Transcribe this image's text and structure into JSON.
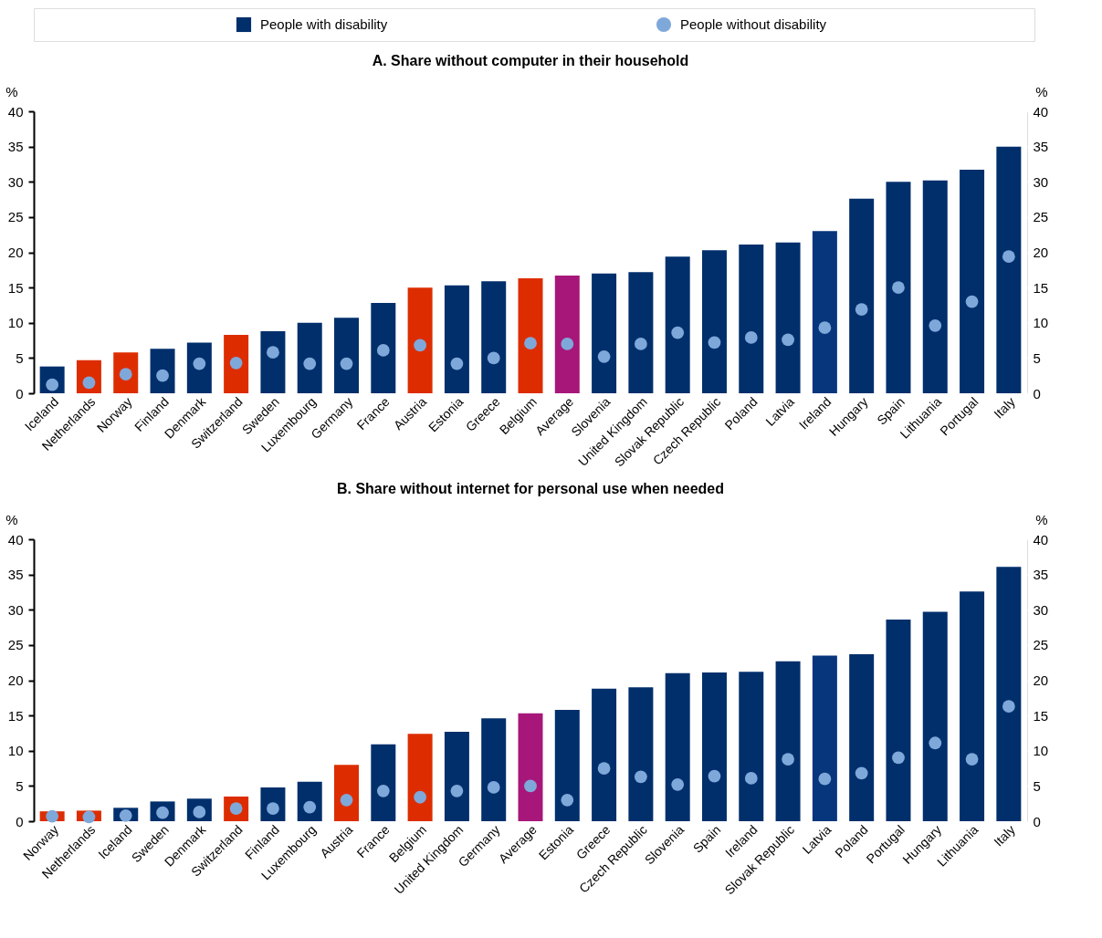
{
  "chart_data": [
    {
      "type": "bar",
      "title": "A. Share without computer in their household",
      "ylabel": "%",
      "y2label": "%",
      "categories": [
        "Iceland",
        "Netherlands",
        "Norway",
        "Finland",
        "Denmark",
        "Switzerland",
        "Sweden",
        "Luxembourg",
        "Germany",
        "France",
        "Austria",
        "Estonia",
        "Greece",
        "Belgium",
        "Average",
        "Slovenia",
        "United Kingdom",
        "Slovak Republic",
        "Czech Republic",
        "Poland",
        "Latvia",
        "Ireland",
        "Hungary",
        "Spain",
        "Lithuania",
        "Portugal",
        "Italy"
      ],
      "series": [
        {
          "name": "People with disability",
          "type": "bar",
          "color": "#002f6c",
          "colors": [
            "#002f6c",
            "#dd2d00",
            "#dd2d00",
            "#002f6c",
            "#002f6c",
            "#dd2d00",
            "#002f6c",
            "#002f6c",
            "#002f6c",
            "#002f6c",
            "#dd2d00",
            "#002f6c",
            "#002f6c",
            "#dd2d00",
            "#a7177a",
            "#002f6c",
            "#002f6c",
            "#002f6c",
            "#002f6c",
            "#002f6c",
            "#002f6c",
            "#07367c",
            "#002f6c",
            "#002f6c",
            "#002f6c",
            "#002f6c",
            "#002f6c"
          ],
          "values": [
            3.8,
            4.7,
            5.8,
            6.3,
            7.2,
            8.3,
            8.8,
            10.0,
            10.7,
            12.8,
            15.0,
            15.3,
            15.9,
            16.3,
            16.7,
            17.0,
            17.2,
            19.4,
            20.3,
            21.1,
            21.4,
            23.0,
            27.6,
            30.0,
            30.2,
            31.7,
            35.0
          ]
        },
        {
          "name": "People without disability",
          "type": "scatter",
          "marker": "circle",
          "color": "#7fa8da",
          "values": [
            1.2,
            1.5,
            2.7,
            2.5,
            4.2,
            4.3,
            5.8,
            4.2,
            4.2,
            6.1,
            6.8,
            4.2,
            5.0,
            7.1,
            7.0,
            5.2,
            7.0,
            8.6,
            7.2,
            7.9,
            7.6,
            9.3,
            11.9,
            15.0,
            9.6,
            13.0,
            19.4
          ]
        }
      ],
      "ylim": [
        0,
        40
      ],
      "yticks": [
        0,
        5,
        10,
        15,
        20,
        25,
        30,
        35,
        40
      ],
      "y2lim": [
        0,
        40
      ],
      "y2ticks": [
        0,
        5,
        10,
        15,
        20,
        25,
        30,
        35,
        40
      ],
      "grid": true,
      "legend": "top"
    },
    {
      "type": "bar",
      "title": "B. Share without internet for personal use when needed",
      "ylabel": "%",
      "y2label": "%",
      "categories": [
        "Norway",
        "Netherlands",
        "Iceland",
        "Sweden",
        "Denmark",
        "Switzerland",
        "Finland",
        "Luxembourg",
        "Austria",
        "France",
        "Belgium",
        "United Kingdom",
        "Germany",
        "Average",
        "Estonia",
        "Greece",
        "Czech Republic",
        "Slovenia",
        "Spain",
        "Ireland",
        "Slovak Republic",
        "Latvia",
        "Poland",
        "Portugal",
        "Hungary",
        "Lithuania",
        "Italy"
      ],
      "series": [
        {
          "type": "bar",
          "colors": [
            "#dd2d00",
            "#dd2d00",
            "#002f6c",
            "#002f6c",
            "#002f6c",
            "#dd2d00",
            "#002f6c",
            "#002f6c",
            "#dd2d00",
            "#002f6c",
            "#dd2d00",
            "#002f6c",
            "#002f6c",
            "#a7177a",
            "#002f6c",
            "#002f6c",
            "#002f6c",
            "#002f6c",
            "#002f6c",
            "#002f6c",
            "#002f6c",
            "#07367c",
            "#002f6c",
            "#002f6c",
            "#002f6c",
            "#002f6c",
            "#002f6c"
          ],
          "values": [
            1.4,
            1.5,
            1.9,
            2.8,
            3.2,
            3.5,
            4.8,
            5.6,
            8.0,
            10.9,
            12.4,
            12.7,
            14.6,
            15.3,
            15.8,
            18.8,
            19.0,
            21.0,
            21.1,
            21.2,
            22.7,
            23.5,
            23.7,
            28.6,
            29.7,
            32.6,
            36.1
          ]
        },
        {
          "type": "scatter",
          "marker": "circle",
          "color": "#7fa8da",
          "values": [
            0.7,
            0.6,
            0.8,
            1.2,
            1.3,
            1.8,
            1.8,
            2.0,
            3.0,
            4.3,
            3.4,
            4.3,
            4.8,
            5.0,
            3.0,
            7.5,
            6.3,
            5.2,
            6.4,
            6.1,
            8.8,
            6.0,
            6.8,
            9.0,
            11.1,
            8.8,
            16.3
          ]
        }
      ],
      "ylim": [
        0,
        40
      ],
      "yticks": [
        0,
        5,
        10,
        15,
        20,
        25,
        30,
        35,
        40
      ],
      "y2lim": [
        0,
        40
      ],
      "y2ticks": [
        0,
        5,
        10,
        15,
        20,
        25,
        30,
        35,
        40
      ],
      "grid": true,
      "legend": false
    }
  ]
}
